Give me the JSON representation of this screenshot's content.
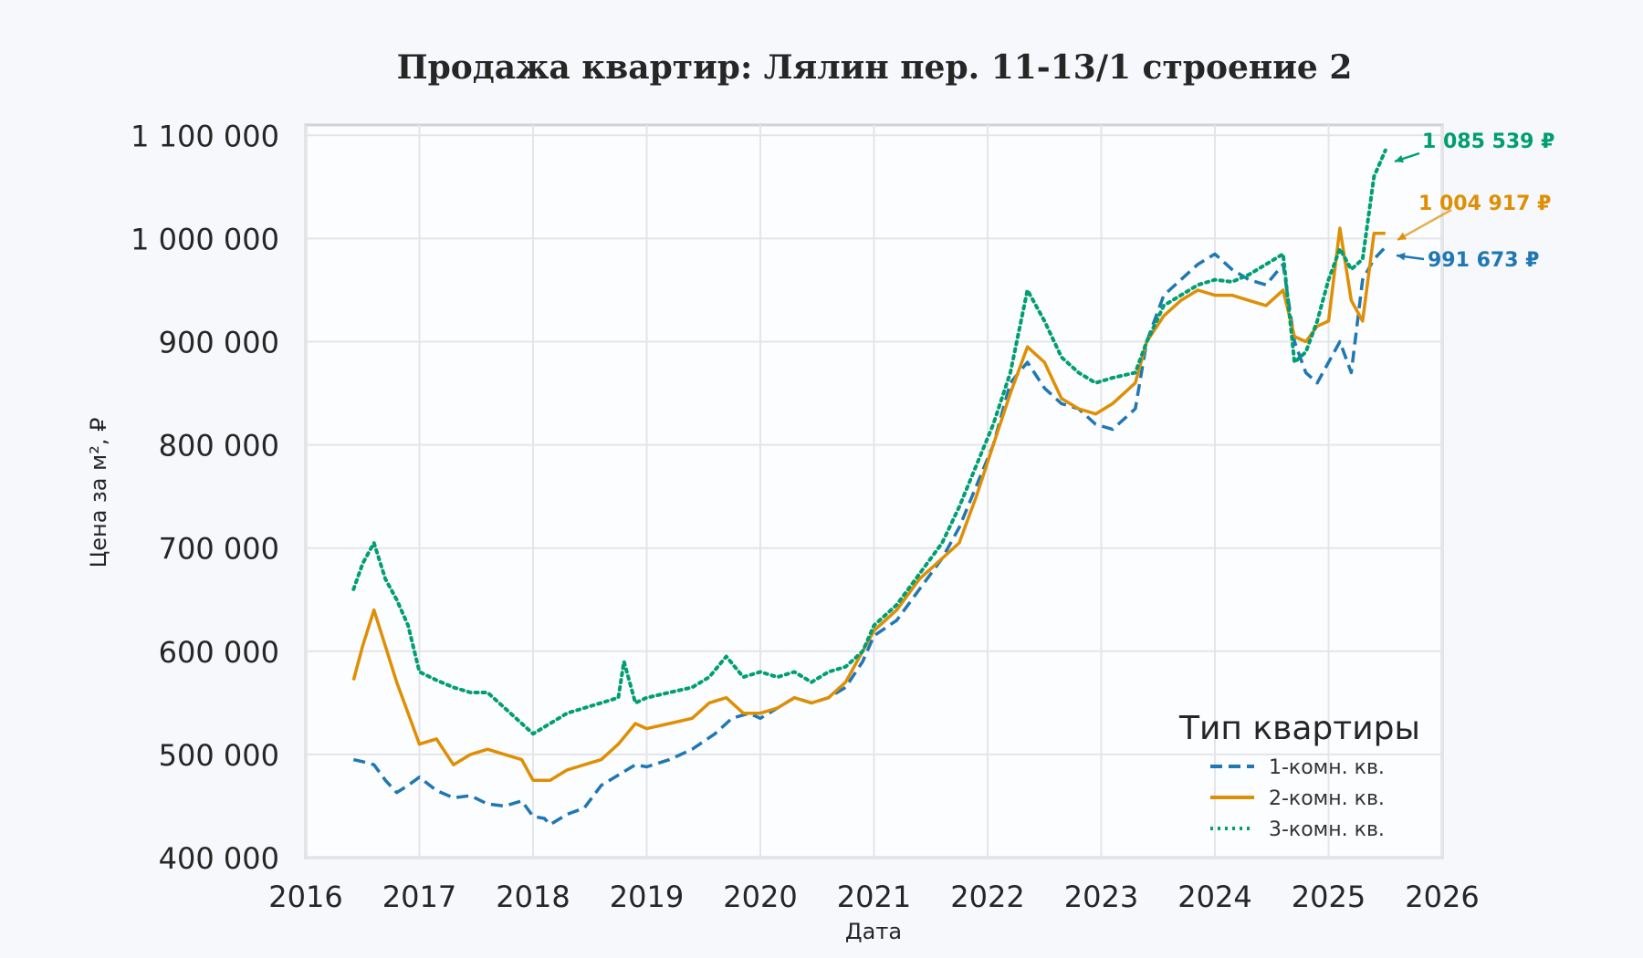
{
  "chart_data": {
    "type": "line",
    "title": "Продажа квартир: Лялин пер. 11-13/1 строение 2",
    "xlabel": "Дата",
    "ylabel": "Цена за м², ₽",
    "xlim": [
      2016,
      2026
    ],
    "ylim": [
      400000,
      1110000
    ],
    "x_ticks": [
      2016,
      2017,
      2018,
      2019,
      2020,
      2021,
      2022,
      2023,
      2024,
      2025,
      2026
    ],
    "x_tick_labels": [
      "2016",
      "2017",
      "2018",
      "2019",
      "2020",
      "2021",
      "2022",
      "2023",
      "2024",
      "2025",
      "2026"
    ],
    "y_ticks": [
      400000,
      500000,
      600000,
      700000,
      800000,
      900000,
      1000000,
      1100000
    ],
    "y_tick_labels": [
      "400 000",
      "500 000",
      "600 000",
      "700 000",
      "800 000",
      "900 000",
      "1 000 000",
      "1 100 000"
    ],
    "grid": true,
    "legend": {
      "title": "Тип квартиры",
      "position": "bottom-right"
    },
    "series": [
      {
        "name": "1-комн. кв.",
        "color": "#1f77b4",
        "style": "dashed",
        "end_label": "991 673 ₽",
        "end_value": 991673,
        "x": [
          2016.42,
          2016.5,
          2016.6,
          2016.7,
          2016.8,
          2016.9,
          2017.0,
          2017.15,
          2017.3,
          2017.45,
          2017.6,
          2017.75,
          2017.9,
          2018.0,
          2018.1,
          2018.15,
          2018.3,
          2018.45,
          2018.6,
          2018.75,
          2018.9,
          2019.0,
          2019.2,
          2019.4,
          2019.6,
          2019.75,
          2019.9,
          2020.0,
          2020.15,
          2020.3,
          2020.45,
          2020.6,
          2020.75,
          2020.9,
          2021.0,
          2021.2,
          2021.4,
          2021.6,
          2021.75,
          2021.9,
          2022.05,
          2022.2,
          2022.35,
          2022.5,
          2022.65,
          2022.8,
          2022.95,
          2023.1,
          2023.3,
          2023.4,
          2023.55,
          2023.7,
          2023.85,
          2024.0,
          2024.15,
          2024.3,
          2024.45,
          2024.6,
          2024.7,
          2024.8,
          2024.9,
          2025.0,
          2025.1,
          2025.2,
          2025.3,
          2025.4,
          2025.5
        ],
        "y": [
          495000,
          493000,
          490000,
          475000,
          463000,
          470000,
          478000,
          465000,
          458000,
          460000,
          452000,
          450000,
          455000,
          440000,
          438000,
          432000,
          442000,
          448000,
          470000,
          480000,
          490000,
          488000,
          495000,
          505000,
          520000,
          535000,
          540000,
          535000,
          545000,
          555000,
          550000,
          555000,
          565000,
          590000,
          615000,
          630000,
          660000,
          690000,
          720000,
          760000,
          800000,
          860000,
          880000,
          855000,
          840000,
          835000,
          820000,
          815000,
          835000,
          900000,
          945000,
          960000,
          975000,
          985000,
          970000,
          960000,
          955000,
          975000,
          900000,
          870000,
          860000,
          880000,
          900000,
          870000,
          960000,
          980000,
          991673
        ]
      },
      {
        "name": "2-комн. кв.",
        "color": "#de8f05",
        "style": "solid",
        "end_label": "1 004 917 ₽",
        "end_value": 1004917,
        "x": [
          2016.42,
          2016.5,
          2016.6,
          2016.7,
          2016.8,
          2016.9,
          2017.0,
          2017.15,
          2017.3,
          2017.45,
          2017.6,
          2017.75,
          2017.9,
          2018.0,
          2018.15,
          2018.3,
          2018.45,
          2018.6,
          2018.75,
          2018.9,
          2019.0,
          2019.2,
          2019.4,
          2019.55,
          2019.7,
          2019.85,
          2020.0,
          2020.15,
          2020.3,
          2020.45,
          2020.6,
          2020.75,
          2020.9,
          2021.0,
          2021.2,
          2021.4,
          2021.6,
          2021.75,
          2021.9,
          2022.05,
          2022.2,
          2022.35,
          2022.5,
          2022.65,
          2022.8,
          2022.95,
          2023.1,
          2023.3,
          2023.4,
          2023.55,
          2023.7,
          2023.85,
          2024.0,
          2024.15,
          2024.3,
          2024.45,
          2024.6,
          2024.7,
          2024.8,
          2024.9,
          2025.0,
          2025.1,
          2025.2,
          2025.3,
          2025.4,
          2025.5
        ],
        "y": [
          572000,
          605000,
          640000,
          605000,
          570000,
          540000,
          510000,
          515000,
          490000,
          500000,
          505000,
          500000,
          495000,
          475000,
          475000,
          485000,
          490000,
          495000,
          510000,
          530000,
          525000,
          530000,
          535000,
          550000,
          555000,
          540000,
          540000,
          545000,
          555000,
          550000,
          555000,
          570000,
          600000,
          620000,
          640000,
          670000,
          690000,
          705000,
          750000,
          800000,
          850000,
          895000,
          880000,
          845000,
          835000,
          830000,
          840000,
          860000,
          900000,
          925000,
          940000,
          950000,
          945000,
          945000,
          940000,
          935000,
          950000,
          905000,
          900000,
          915000,
          920000,
          1010000,
          940000,
          920000,
          1005000,
          1004917
        ]
      },
      {
        "name": "3-комн. кв.",
        "color": "#029e73",
        "style": "dotted",
        "end_label": "1 085 539 ₽",
        "end_value": 1085539,
        "x": [
          2016.42,
          2016.5,
          2016.6,
          2016.7,
          2016.8,
          2016.9,
          2017.0,
          2017.15,
          2017.3,
          2017.45,
          2017.6,
          2017.75,
          2017.9,
          2018.0,
          2018.15,
          2018.3,
          2018.45,
          2018.6,
          2018.75,
          2018.8,
          2018.9,
          2019.0,
          2019.2,
          2019.4,
          2019.55,
          2019.7,
          2019.85,
          2020.0,
          2020.15,
          2020.3,
          2020.45,
          2020.6,
          2020.75,
          2020.9,
          2021.0,
          2021.2,
          2021.4,
          2021.6,
          2021.75,
          2021.9,
          2022.05,
          2022.2,
          2022.35,
          2022.5,
          2022.65,
          2022.8,
          2022.95,
          2023.1,
          2023.3,
          2023.4,
          2023.55,
          2023.7,
          2023.85,
          2024.0,
          2024.15,
          2024.3,
          2024.45,
          2024.6,
          2024.7,
          2024.8,
          2024.9,
          2025.0,
          2025.1,
          2025.2,
          2025.3,
          2025.4,
          2025.5
        ],
        "y": [
          660000,
          685000,
          705000,
          670000,
          650000,
          625000,
          580000,
          572000,
          565000,
          560000,
          560000,
          545000,
          530000,
          520000,
          530000,
          540000,
          545000,
          550000,
          555000,
          590000,
          550000,
          555000,
          560000,
          565000,
          575000,
          595000,
          575000,
          580000,
          575000,
          580000,
          570000,
          580000,
          585000,
          600000,
          625000,
          645000,
          675000,
          705000,
          740000,
          780000,
          820000,
          870000,
          950000,
          920000,
          885000,
          870000,
          860000,
          865000,
          870000,
          900000,
          935000,
          945000,
          955000,
          960000,
          958000,
          965000,
          975000,
          985000,
          880000,
          890000,
          920000,
          960000,
          990000,
          970000,
          980000,
          1060000,
          1085539
        ]
      }
    ]
  }
}
